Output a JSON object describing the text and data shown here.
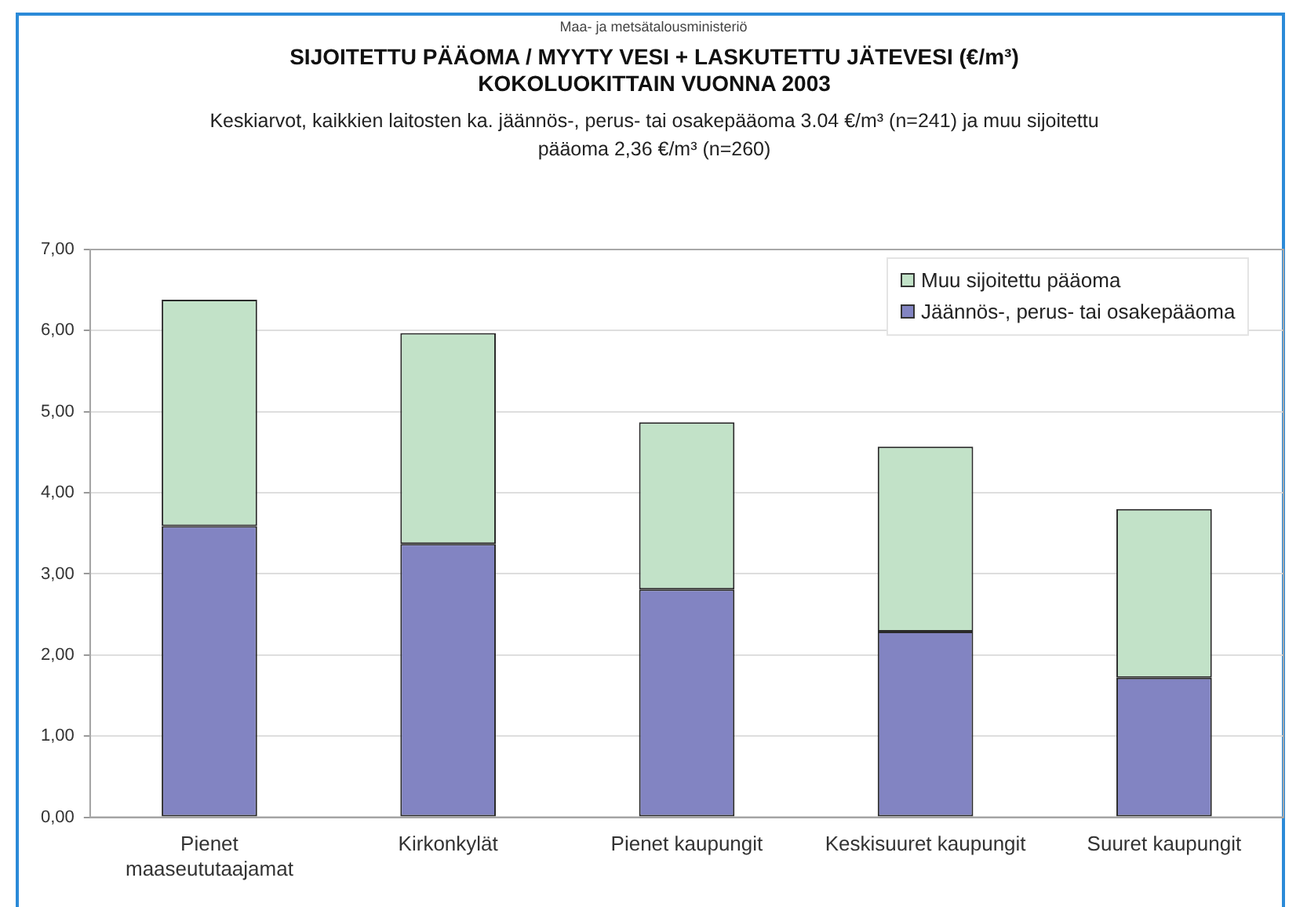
{
  "chart_data": {
    "type": "bar",
    "title": "SIJOITETTU PÄÄOMA / MYYTY VESI + LASKUTETTU JÄTEVESI (€/m³) KOKOLUOKITTAIN VUONNA 2003",
    "subtitle": "Keskiarvot, kaikkien laitosten ka. jäännös-, perus- tai osakepääoma 3.04 €/m³ (n=241) ja muu sijoitettu pääoma 2,36 €/m³ (n=260)",
    "annotations": [
      "Maa- ja metsätalousministeriö"
    ],
    "categories": [
      "Pienet maaseututaajamat",
      "Kirkonkylät",
      "Pienet kaupungit",
      "Keskisuuret kaupungit",
      "Suuret kaupungit"
    ],
    "stacked": true,
    "series": [
      {
        "name": "Jäännös-, perus- tai osakepääoma",
        "color": "#8284c2",
        "values": [
          3.59,
          3.37,
          2.81,
          2.29,
          1.72
        ]
      },
      {
        "name": "Muu sijoitettu pääoma",
        "color": "#c2e2c8",
        "values": [
          2.79,
          2.6,
          2.06,
          2.28,
          2.08
        ]
      }
    ],
    "ylim": [
      0,
      7
    ],
    "yticks": [
      {
        "value": 0,
        "label": "0,00"
      },
      {
        "value": 1,
        "label": "1,00"
      },
      {
        "value": 2,
        "label": "2,00"
      },
      {
        "value": 3,
        "label": "3,00"
      },
      {
        "value": 4,
        "label": "4,00"
      },
      {
        "value": 5,
        "label": "5,00"
      },
      {
        "value": 6,
        "label": "6,00"
      },
      {
        "value": 7,
        "label": "7,00"
      }
    ],
    "grid": "y",
    "legend": "top right"
  }
}
